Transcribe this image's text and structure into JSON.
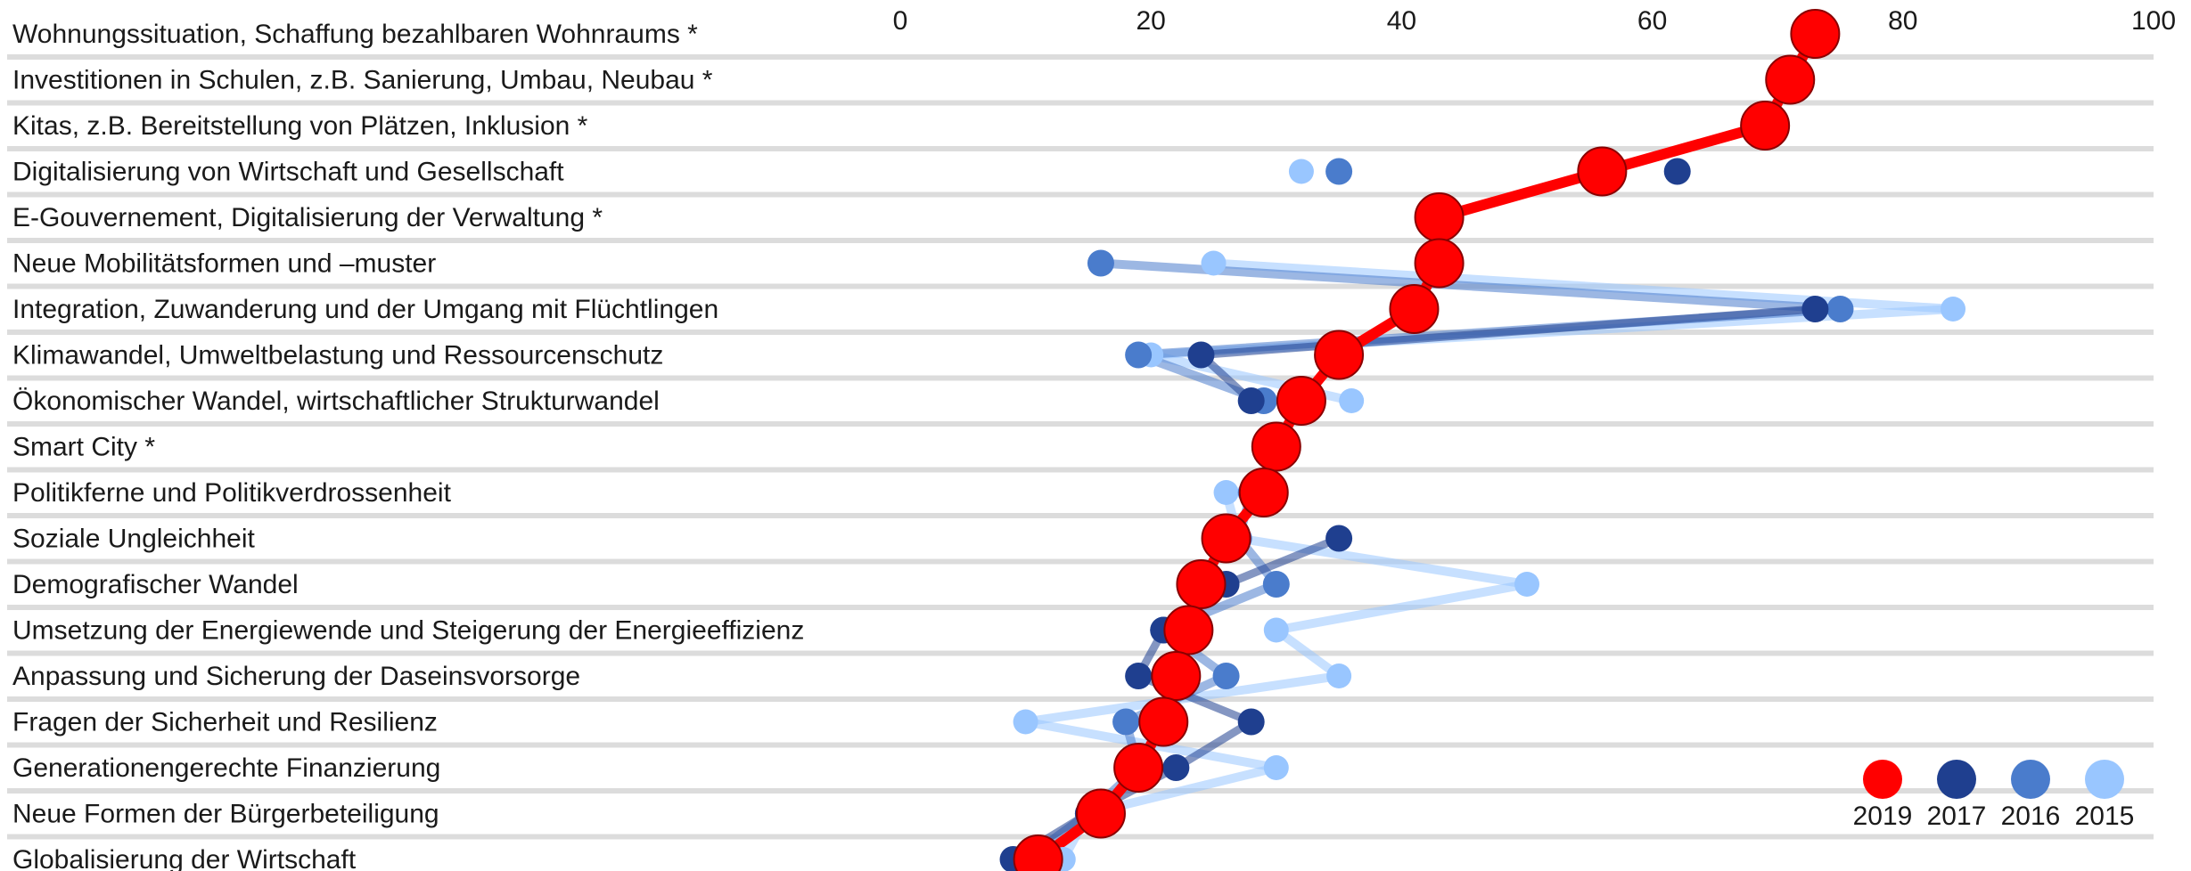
{
  "chart_data": {
    "type": "line",
    "orientation": "horizontal",
    "xlim": [
      0,
      100
    ],
    "x_ticks": [
      "0",
      "20",
      "40",
      "60",
      "80",
      "100"
    ],
    "categories": [
      "Wohnungssituation, Schaffung bezahlbaren Wohnraums *",
      "Investitionen in Schulen, z.B. Sanierung, Umbau, Neubau *",
      "Kitas, z.B. Bereitstellung von Plätzen, Inklusion *",
      "Digitalisierung von Wirtschaft und Gesellschaft",
      "E-Gouvernement, Digitalisierung der Verwaltung *",
      "Neue Mobilitätsformen und –muster",
      "Integration, Zuwanderung und der Umgang mit Flüchtlingen",
      "Klimawandel, Umweltbelastung und Ressourcenschutz",
      "Ökonomischer Wandel, wirtschaftlicher Strukturwandel",
      "Smart City *",
      "Politikferne und Politikverdrossenheit",
      "Soziale Ungleichheit",
      "Demografischer Wandel",
      "Umsetzung der Energiewende und Steigerung der Energieeffizienz",
      "Anpassung und Sicherung der Daseinsvorsorge",
      "Fragen der Sicherheit und Resilienz",
      "Generationengerechte Finanzierung",
      "Neue Formen der Bürgerbeteiligung",
      "Globalisierung der Wirtschaft"
    ],
    "series": [
      {
        "name": "2015",
        "color": "#99c6ff",
        "values": [
          null,
          null,
          null,
          32,
          null,
          25,
          84,
          20,
          36,
          null,
          26,
          27,
          50,
          30,
          35,
          10,
          30,
          15,
          13
        ]
      },
      {
        "name": "2016",
        "color": "#4a7ccc",
        "values": [
          null,
          null,
          null,
          35,
          null,
          16,
          75,
          19,
          29,
          null,
          28,
          27,
          30,
          21,
          26,
          18,
          19,
          15,
          10
        ]
      },
      {
        "name": "2017",
        "color": "#1f3f8f",
        "values": [
          null,
          null,
          null,
          62,
          null,
          null,
          73,
          24,
          28,
          null,
          null,
          35,
          26,
          21,
          19,
          28,
          22,
          15,
          9
        ]
      },
      {
        "name": "2019",
        "color": "#ff0000",
        "values": [
          73,
          71,
          69,
          56,
          43,
          43,
          41,
          35,
          32,
          30,
          29,
          26,
          24,
          23,
          22,
          21,
          19,
          16,
          11
        ]
      }
    ],
    "legend_position": "bottom-right",
    "grid": true
  }
}
